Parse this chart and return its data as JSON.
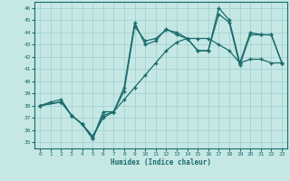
{
  "xlabel": "Humidex (Indice chaleur)",
  "bg_color": "#c5e8e5",
  "line_color": "#1a6b6b",
  "grid_color": "#9ecece",
  "xlim": [
    -0.5,
    23.5
  ],
  "ylim": [
    34.5,
    46.5
  ],
  "xticks": [
    0,
    1,
    2,
    3,
    4,
    5,
    6,
    7,
    8,
    9,
    10,
    11,
    12,
    13,
    14,
    15,
    16,
    17,
    18,
    19,
    20,
    21,
    22,
    23
  ],
  "yticks": [
    35,
    36,
    37,
    38,
    39,
    40,
    41,
    42,
    43,
    44,
    45,
    46
  ],
  "s1x": [
    0,
    1,
    2,
    3,
    4,
    5,
    6,
    7,
    8,
    9,
    10,
    11,
    12,
    13,
    14,
    15,
    16,
    17,
    18,
    19,
    20,
    21,
    22,
    23
  ],
  "s1y": [
    38.0,
    38.3,
    38.5,
    37.2,
    36.5,
    35.5,
    37.0,
    37.5,
    38.5,
    39.5,
    40.5,
    41.5,
    42.5,
    43.2,
    43.5,
    43.5,
    43.5,
    43.0,
    42.5,
    41.5,
    41.8,
    41.8,
    41.5,
    41.5
  ],
  "s2x": [
    0,
    2,
    3,
    4,
    5,
    6,
    7,
    8,
    9,
    10,
    11,
    12,
    13,
    14,
    15,
    16,
    17,
    18,
    19,
    20,
    21,
    22,
    23
  ],
  "s2y": [
    38.0,
    38.3,
    37.2,
    36.5,
    35.3,
    37.2,
    37.5,
    39.2,
    44.5,
    43.3,
    43.5,
    44.2,
    44.0,
    43.5,
    42.5,
    42.5,
    45.5,
    44.8,
    41.3,
    43.8,
    43.8,
    43.8,
    41.5
  ],
  "s3x": [
    0,
    2,
    3,
    4,
    5,
    6,
    7,
    8,
    9,
    10,
    11,
    12,
    13,
    14,
    15,
    16,
    17,
    18,
    19,
    20,
    21,
    22,
    23
  ],
  "s3y": [
    38.0,
    38.3,
    37.2,
    36.5,
    35.3,
    37.5,
    37.5,
    39.5,
    44.8,
    43.0,
    43.3,
    44.3,
    43.8,
    43.5,
    42.5,
    42.5,
    46.0,
    45.0,
    41.5,
    44.0,
    43.8,
    43.8,
    41.5
  ]
}
